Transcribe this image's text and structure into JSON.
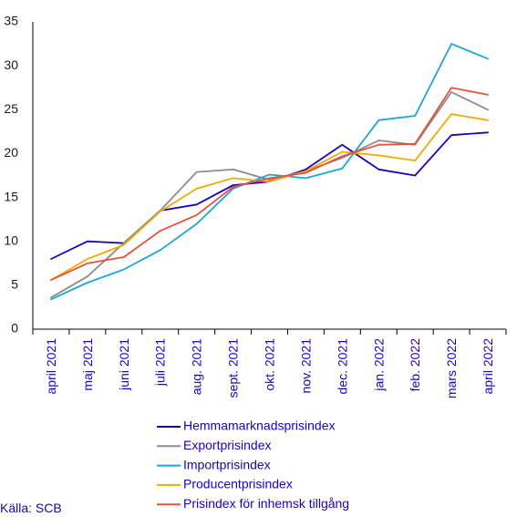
{
  "chart_data": {
    "type": "line",
    "categories": [
      "april 2021",
      "maj 2021",
      "juni 2021",
      "juli 2021",
      "aug. 2021",
      "sept. 2021",
      "okt. 2021",
      "nov. 2021",
      "dec. 2021",
      "jan. 2022",
      "feb. 2022",
      "mars 2022",
      "april 2022"
    ],
    "ylim": [
      0,
      35
    ],
    "yticks": [
      0,
      5,
      10,
      15,
      20,
      25,
      30,
      35
    ],
    "grid": false,
    "legend_position": "bottom",
    "series": [
      {
        "name": "Hemmamarknadsprisindex",
        "color": "#1e00be",
        "values": [
          8.0,
          10.0,
          9.8,
          13.5,
          14.2,
          16.4,
          16.8,
          18.2,
          21.0,
          18.2,
          17.5,
          22.1,
          22.4
        ]
      },
      {
        "name": "Exportprisindex",
        "color": "#8c8c8c",
        "values": [
          3.6,
          6.0,
          9.8,
          13.5,
          17.9,
          18.2,
          17.0,
          18.0,
          19.5,
          21.5,
          21.0,
          27.0,
          25.0
        ]
      },
      {
        "name": "Importprisindex",
        "color": "#1ea5dc",
        "values": [
          3.4,
          5.3,
          6.8,
          9.0,
          12.0,
          16.0,
          17.6,
          17.2,
          18.3,
          23.8,
          24.3,
          32.5,
          30.8
        ]
      },
      {
        "name": "Producentprisindex",
        "color": "#f0aa00",
        "values": [
          5.6,
          8.0,
          9.6,
          13.4,
          16.0,
          17.2,
          16.8,
          18.0,
          20.2,
          19.8,
          19.2,
          24.5,
          23.8
        ]
      },
      {
        "name": "Prisindex för inhemsk tillgång",
        "color": "#e6503c",
        "values": [
          5.6,
          7.5,
          8.2,
          11.2,
          13.0,
          16.2,
          17.2,
          17.8,
          19.7,
          21.0,
          21.1,
          27.5,
          26.7
        ]
      }
    ]
  },
  "source_text": "Källa: SCB"
}
